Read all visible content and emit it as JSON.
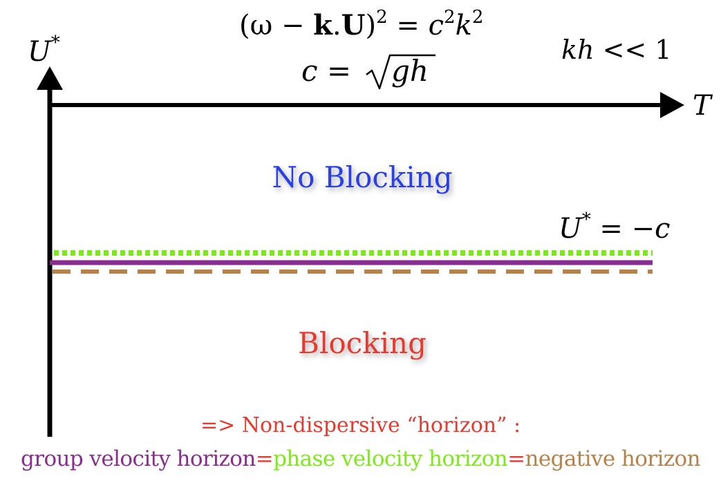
{
  "equations": {
    "dispersion": {
      "lhs_open": "(ω − ",
      "bold_k": "k",
      "dot": ".",
      "bold_u": "U",
      "lhs_close": ")",
      "lhs_exp": "2",
      "eq": " = ",
      "c": "c",
      "c_exp": "2",
      "k": "k",
      "k_exp": "2"
    },
    "speed": {
      "c": "c",
      "eq": " = ",
      "radicand": "gh"
    },
    "regime": {
      "kh": "kh",
      "rel": " << 1"
    }
  },
  "axes": {
    "y_label": {
      "base": "U",
      "sup": "*"
    },
    "x_label": "T"
  },
  "regions": {
    "upper": {
      "label": "No Blocking",
      "color": "#2b3fe6"
    },
    "lower": {
      "label": "Blocking",
      "color": "#e53a2e"
    }
  },
  "threshold": {
    "label": {
      "base": "U",
      "sup": "*",
      "rhs": " = −c"
    },
    "lines": [
      {
        "name": "phase velocity horizon",
        "color": "#7de81a",
        "style": "dotted"
      },
      {
        "name": "group velocity horizon",
        "color": "#8a2d91",
        "style": "solid"
      },
      {
        "name": "negative horizon",
        "color": "#b7814a",
        "style": "dashed"
      }
    ]
  },
  "caption": {
    "line1": {
      "text": "=> Non-dispersive “horizon” :",
      "color": "#e53a2e"
    },
    "line2": [
      {
        "text": "group velocity horizon",
        "color": "#8a2d91"
      },
      {
        "text": "=",
        "color": "#e53a2e"
      },
      {
        "text": "phase velocity horizon",
        "color": "#7de81a"
      },
      {
        "text": "=",
        "color": "#e53a2e"
      },
      {
        "text": "negative horizon",
        "color": "#b7814a"
      }
    ]
  }
}
